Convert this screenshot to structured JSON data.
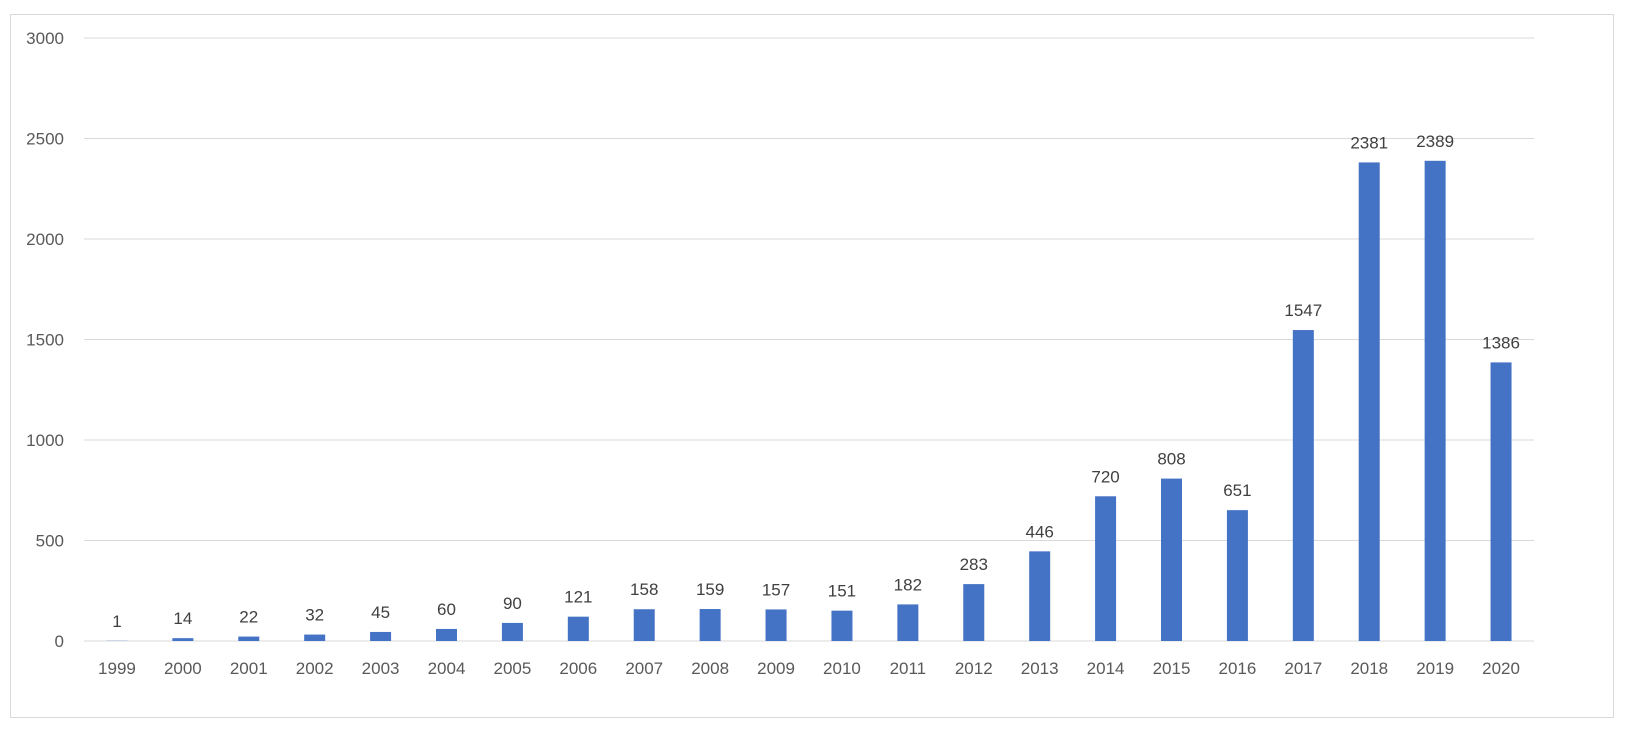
{
  "chart_data": {
    "type": "bar",
    "title": "",
    "xlabel": "",
    "ylabel": "",
    "categories": [
      "1999",
      "2000",
      "2001",
      "2002",
      "2003",
      "2004",
      "2005",
      "2006",
      "2007",
      "2008",
      "2009",
      "2010",
      "2011",
      "2012",
      "2013",
      "2014",
      "2015",
      "2016",
      "2017",
      "2018",
      "2019",
      "2020"
    ],
    "values": [
      1,
      14,
      22,
      32,
      45,
      60,
      90,
      121,
      158,
      159,
      157,
      151,
      182,
      283,
      446,
      720,
      808,
      651,
      1547,
      2381,
      2389,
      1386
    ],
    "ylim": [
      0,
      3000
    ],
    "yticks": [
      "0",
      "500",
      "1000",
      "1500",
      "2000",
      "2500",
      "3000"
    ],
    "grid": true,
    "legend": "none",
    "data_labels": true,
    "bar_color": "#4472c4",
    "grid_color": "#d9d9d9"
  }
}
